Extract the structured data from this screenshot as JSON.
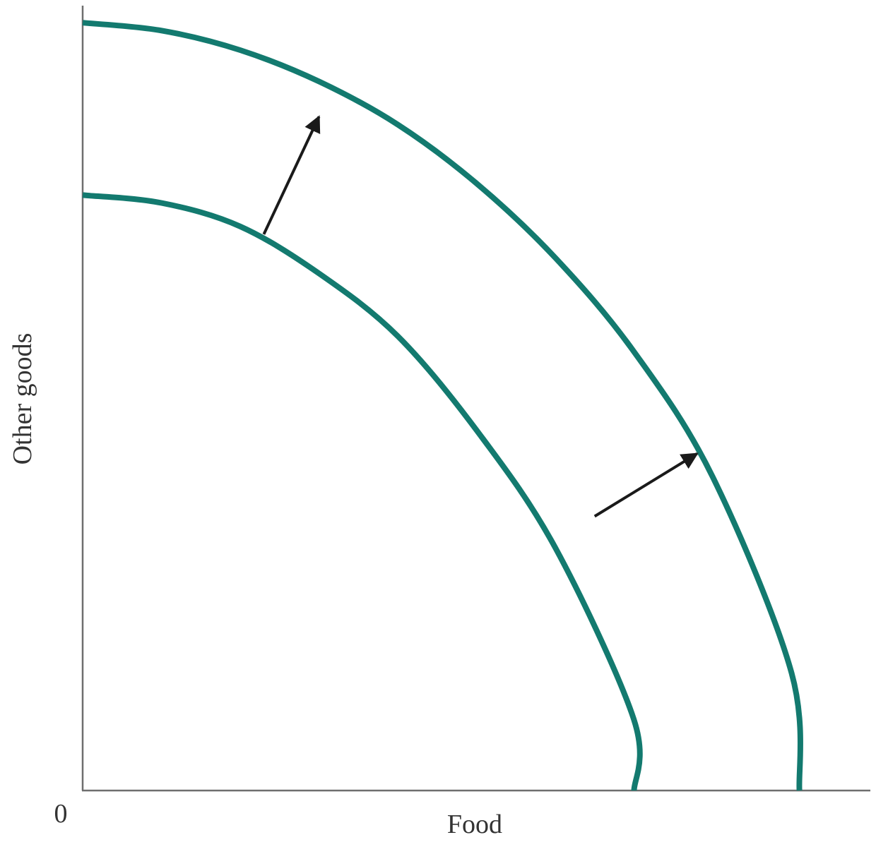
{
  "chart_data": {
    "type": "line",
    "title": "",
    "xlabel": "Food",
    "ylabel": "Other goods",
    "origin_label": "0",
    "xlim": [
      0,
      10
    ],
    "ylim": [
      0,
      10
    ],
    "grid": false,
    "legend": "none",
    "series": [
      {
        "x": [
          0,
          1,
          2,
          3,
          4,
          5,
          6,
          7,
          7.0
        ],
        "y": [
          7.6,
          7.5,
          7.2,
          6.6,
          5.8,
          4.6,
          3.1,
          0.9,
          0
        ]
      },
      {
        "x": [
          0,
          1,
          2,
          3,
          4,
          5,
          6,
          7,
          8,
          9,
          9.1
        ],
        "y": [
          9.8,
          9.7,
          9.45,
          9.05,
          8.5,
          7.75,
          6.8,
          5.6,
          4.0,
          1.5,
          0
        ]
      }
    ],
    "arrows": [
      {
        "from": [
          2.3,
          7.1
        ],
        "to": [
          3.0,
          8.6
        ]
      },
      {
        "from": [
          6.5,
          3.5
        ],
        "to": [
          7.8,
          4.3
        ]
      }
    ],
    "colors": {
      "curve": "#137a6f",
      "arrow": "#1a1a1a",
      "axis": "#6e6e6e"
    }
  }
}
